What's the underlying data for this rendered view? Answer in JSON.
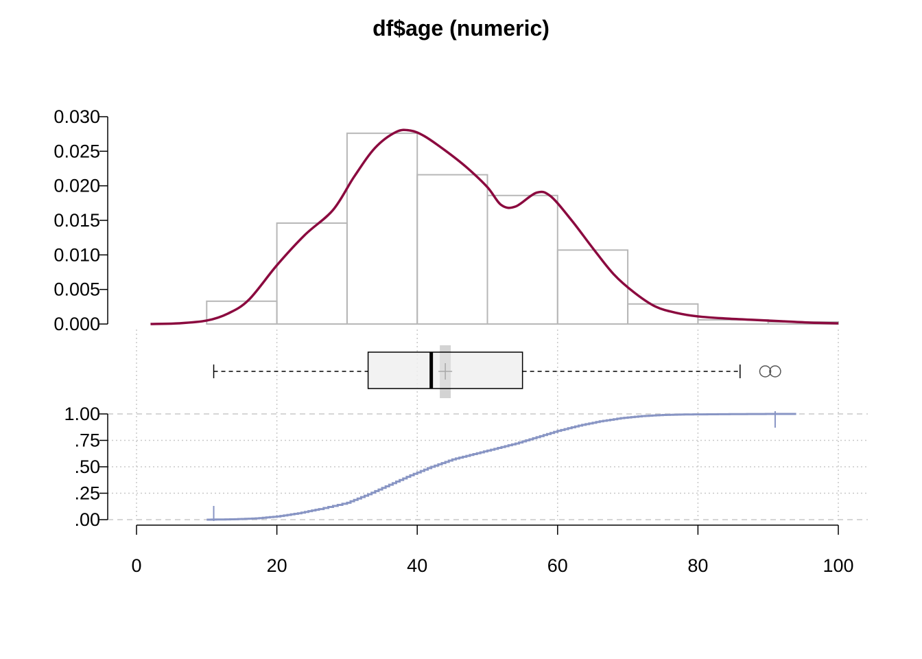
{
  "title": "df$age (numeric)",
  "colors": {
    "density": "#8B0A3F",
    "histogram": "#B7B7B7",
    "ecdf": "#8895C4",
    "box_fill": "#F0F0F0",
    "mean_band": "#D3D3D3",
    "grid": "#C8C8C8",
    "axis": "#000000"
  },
  "chart_data": [
    {
      "type": "histogram",
      "panel": "density",
      "xlim": [
        0,
        100
      ],
      "ylim": [
        0,
        0.03
      ],
      "ytick_labels": [
        "0.000",
        "0.005",
        "0.010",
        "0.015",
        "0.020",
        "0.025",
        "0.030"
      ],
      "ytick_values": [
        0,
        0.005,
        0.01,
        0.015,
        0.02,
        0.025,
        0.03
      ],
      "bins": [
        {
          "x0": 10,
          "x1": 20,
          "density": 0.0033
        },
        {
          "x0": 20,
          "x1": 30,
          "density": 0.0146
        },
        {
          "x0": 30,
          "x1": 40,
          "density": 0.0276
        },
        {
          "x0": 40,
          "x1": 50,
          "density": 0.0216
        },
        {
          "x0": 50,
          "x1": 60,
          "density": 0.0186
        },
        {
          "x0": 60,
          "x1": 70,
          "density": 0.0107
        },
        {
          "x0": 70,
          "x1": 80,
          "density": 0.0029
        },
        {
          "x0": 80,
          "x1": 90,
          "density": 0.0006
        },
        {
          "x0": 90,
          "x1": 100,
          "density": 0.0003
        }
      ]
    },
    {
      "type": "line",
      "panel": "density",
      "series": [
        {
          "x": [
            2,
            6,
            10,
            13,
            16,
            20,
            24,
            28,
            31,
            34,
            37,
            39,
            41,
            44,
            47,
            50,
            52,
            54,
            57,
            59,
            62,
            65,
            68,
            71,
            74,
            77,
            80,
            84,
            88,
            92,
            96,
            100
          ],
          "y": [
            0.0,
            0.0001,
            0.0005,
            0.0015,
            0.0035,
            0.0085,
            0.0129,
            0.0165,
            0.0213,
            0.0255,
            0.0278,
            0.028,
            0.0272,
            0.0251,
            0.0227,
            0.0198,
            0.0172,
            0.017,
            0.019,
            0.0185,
            0.015,
            0.011,
            0.0072,
            0.0045,
            0.0025,
            0.0016,
            0.0011,
            0.0008,
            0.0006,
            0.0004,
            0.0002,
            0.0001
          ]
        }
      ]
    },
    {
      "type": "box",
      "panel": "box",
      "whisker_low": 11,
      "q1": 33,
      "median": 42,
      "q3": 55,
      "whisker_high": 86,
      "mean": 44,
      "outliers": [
        89,
        91
      ]
    },
    {
      "type": "line",
      "panel": "ecdf",
      "xlim": [
        0,
        100
      ],
      "ylim": [
        0,
        1
      ],
      "ytick_labels": [
        ".00",
        ".25",
        ".50",
        ".75",
        "1.00"
      ],
      "ytick_values": [
        0,
        0.25,
        0.5,
        0.75,
        1
      ],
      "xtick_labels": [
        "0",
        "20",
        "40",
        "60",
        "80",
        "100"
      ],
      "xtick_values": [
        0,
        20,
        40,
        60,
        80,
        100
      ],
      "min_marker": 11,
      "max_marker": 91,
      "series": [
        {
          "x": [
            10,
            14,
            17,
            20,
            23,
            26,
            30,
            33,
            36,
            39,
            42,
            45,
            48,
            51,
            54,
            57,
            60,
            63,
            66,
            69,
            72,
            75,
            78,
            82,
            87,
            91,
            94
          ],
          "y": [
            0.0,
            0.004,
            0.012,
            0.03,
            0.06,
            0.1,
            0.16,
            0.24,
            0.33,
            0.42,
            0.5,
            0.57,
            0.62,
            0.67,
            0.72,
            0.78,
            0.84,
            0.89,
            0.93,
            0.96,
            0.98,
            0.99,
            0.995,
            0.997,
            0.999,
            1.0,
            1.0
          ]
        }
      ]
    }
  ]
}
